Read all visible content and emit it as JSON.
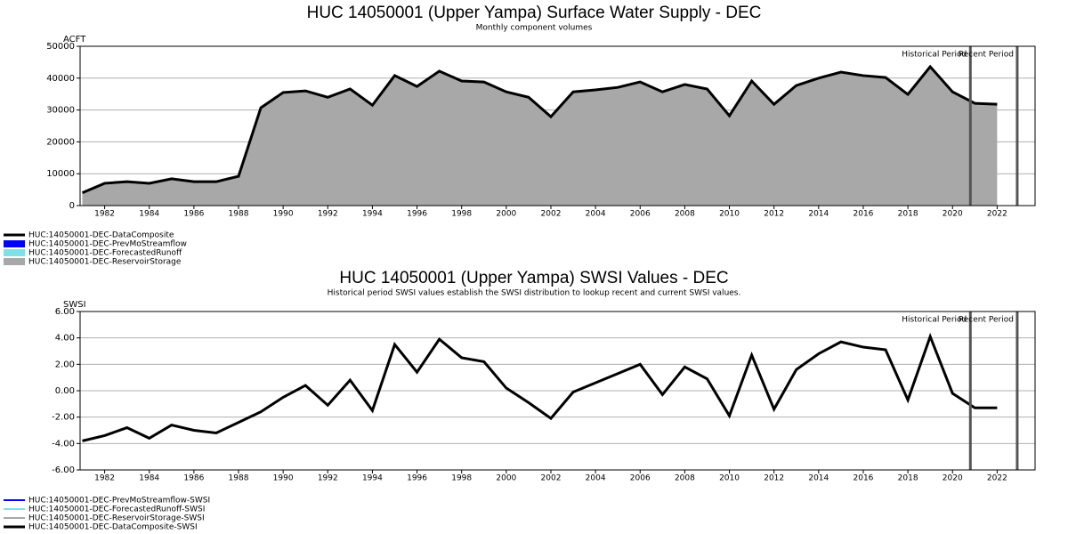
{
  "chart_data": [
    {
      "type": "area",
      "title": "HUC 14050001 (Upper Yampa) Surface Water Supply - DEC",
      "subtitle": "Monthly component volumes",
      "y_label": "ACFT",
      "x": [
        1981,
        1982,
        1983,
        1984,
        1985,
        1986,
        1987,
        1988,
        1989,
        1990,
        1991,
        1992,
        1993,
        1994,
        1995,
        1996,
        1997,
        1998,
        1999,
        2000,
        2001,
        2002,
        2003,
        2004,
        2005,
        2006,
        2007,
        2008,
        2009,
        2010,
        2011,
        2012,
        2013,
        2014,
        2015,
        2016,
        2017,
        2018,
        2019,
        2020,
        2021,
        2022
      ],
      "series": [
        {
          "name": "HUC:14050001-DEC-DataComposite",
          "color": "#000000",
          "style": "line",
          "values": [
            4000,
            7000,
            7500,
            7000,
            8400,
            7500,
            7500,
            9200,
            30700,
            35500,
            36000,
            34000,
            36600,
            31500,
            40800,
            37400,
            42200,
            39100,
            38800,
            35700,
            34000,
            27900,
            35700,
            36300,
            37100,
            38800,
            35700,
            38000,
            36600,
            28200,
            39100,
            31800,
            37700,
            40000,
            41900,
            40800,
            40200,
            34900,
            43600,
            35700,
            32100,
            31800
          ]
        },
        {
          "name": "HUC:14050001-DEC-PrevMoStreamflow",
          "color": "#0000ff",
          "style": "area"
        },
        {
          "name": "HUC:14050001-DEC-ForecastedRunoff",
          "color": "#80e0e8",
          "style": "area"
        },
        {
          "name": "HUC:14050001-DEC-ReservoirStorage",
          "color": "#a8a8a8",
          "style": "area",
          "values": [
            4000,
            7000,
            7500,
            7000,
            8400,
            7500,
            7500,
            9200,
            30700,
            35500,
            36000,
            34000,
            36600,
            31500,
            40800,
            37400,
            42200,
            39100,
            38800,
            35700,
            34000,
            27900,
            35700,
            36300,
            37100,
            38800,
            35700,
            38000,
            36600,
            28200,
            39100,
            31800,
            37700,
            40000,
            41900,
            40800,
            40200,
            34900,
            43600,
            35700,
            32100,
            31800
          ]
        }
      ],
      "xlim": [
        1980.9,
        2023.7
      ],
      "xticks": [
        1982,
        1984,
        1986,
        1988,
        1990,
        1992,
        1994,
        1996,
        1998,
        2000,
        2002,
        2004,
        2006,
        2008,
        2010,
        2012,
        2014,
        2016,
        2018,
        2020,
        2022
      ],
      "ylim": [
        0,
        50000
      ],
      "yticks": [
        0,
        10000,
        20000,
        30000,
        40000,
        50000
      ],
      "grid": true,
      "periods": [
        {
          "label": "Historical Period",
          "x": 2020.8
        },
        {
          "label": "Recent Period",
          "x": 2022.9
        }
      ]
    },
    {
      "type": "line",
      "title": "HUC 14050001 (Upper Yampa) SWSI Values - DEC",
      "subtitle": "Historical period SWSI values establish the SWSI distribution to lookup recent and current SWSI values.",
      "y_label": "SWSI",
      "x": [
        1981,
        1982,
        1983,
        1984,
        1985,
        1986,
        1987,
        1988,
        1989,
        1990,
        1991,
        1992,
        1993,
        1994,
        1995,
        1996,
        1997,
        1998,
        1999,
        2000,
        2001,
        2002,
        2003,
        2004,
        2005,
        2006,
        2007,
        2008,
        2009,
        2010,
        2011,
        2012,
        2013,
        2014,
        2015,
        2016,
        2017,
        2018,
        2019,
        2020,
        2021,
        2022
      ],
      "series": [
        {
          "name": "HUC:14050001-DEC-PrevMoStreamflow-SWSI",
          "color": "#0000ff",
          "style": "line"
        },
        {
          "name": "HUC:14050001-DEC-ForecastedRunoff-SWSI",
          "color": "#80e0e8",
          "style": "line"
        },
        {
          "name": "HUC:14050001-DEC-ReservoirStorage-SWSI",
          "color": "#a8a8a8",
          "style": "line"
        },
        {
          "name": "HUC:14050001-DEC-DataComposite-SWSI",
          "color": "#000000",
          "style": "line",
          "values": [
            -3.8,
            -3.4,
            -2.8,
            -3.6,
            -2.6,
            -3.0,
            -3.2,
            -2.4,
            -1.6,
            -0.5,
            0.4,
            -1.1,
            0.8,
            -1.5,
            3.5,
            1.4,
            3.9,
            2.5,
            2.2,
            0.2,
            -0.9,
            -2.1,
            -0.1,
            0.6,
            1.3,
            2.0,
            -0.3,
            1.8,
            0.9,
            -1.9,
            2.7,
            -1.4,
            1.6,
            2.8,
            3.7,
            3.3,
            3.1,
            -0.7,
            4.1,
            -0.2,
            -1.3,
            -1.3
          ]
        }
      ],
      "xlim": [
        1980.9,
        2023.7
      ],
      "xticks": [
        1982,
        1984,
        1986,
        1988,
        1990,
        1992,
        1994,
        1996,
        1998,
        2000,
        2002,
        2004,
        2006,
        2008,
        2010,
        2012,
        2014,
        2016,
        2018,
        2020,
        2022
      ],
      "ylim": [
        -6,
        6
      ],
      "yticks": [
        {
          "value": -6,
          "label": "-6.00"
        },
        {
          "value": -4,
          "label": "-4.00"
        },
        {
          "value": -2,
          "label": "-2.00"
        },
        {
          "value": 0,
          "label": "0.00"
        },
        {
          "value": 2,
          "label": "2.00"
        },
        {
          "value": 4,
          "label": "4.00"
        },
        {
          "value": 6,
          "label": "6.00"
        }
      ],
      "grid": true,
      "periods": [
        {
          "label": "Historical Period",
          "x": 2020.8
        },
        {
          "label": "Recent Period",
          "x": 2022.9
        }
      ]
    }
  ]
}
